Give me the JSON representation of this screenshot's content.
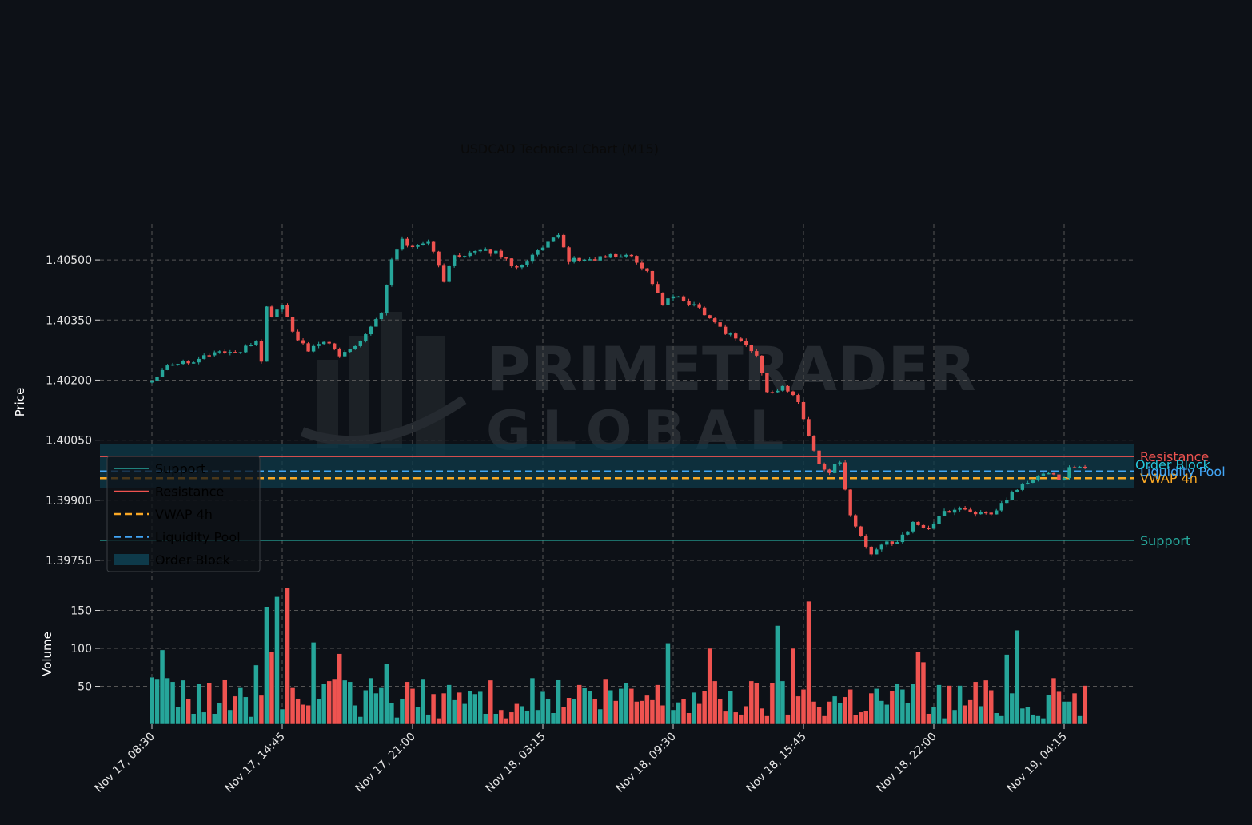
{
  "chart_data": {
    "type": "candlestick",
    "title": "USDCAD Technical Chart (M15)",
    "watermark": {
      "line1": "PRIMETRADER",
      "line2": "GLOBAL"
    },
    "price_axis": {
      "label": "Price",
      "ticks": [
        "1.40500",
        "1.40350",
        "1.40200",
        "1.40050",
        "1.39900",
        "1.39750"
      ],
      "tick_values": [
        1.405,
        1.4035,
        1.402,
        1.4005,
        1.399,
        1.3975
      ],
      "ylim": [
        1.397,
        1.4059
      ]
    },
    "volume_axis": {
      "label": "Volume",
      "ticks": [
        "50",
        "100",
        "150"
      ],
      "tick_values": [
        50,
        100,
        150
      ],
      "ylim": [
        0,
        180
      ]
    },
    "x_axis": {
      "ticks": [
        "Nov 17, 08:30",
        "Nov 17, 14:45",
        "Nov 17, 21:00",
        "Nov 18, 03:15",
        "Nov 18, 09:30",
        "Nov 18, 15:45",
        "Nov 18, 22:00",
        "Nov 19, 04:15"
      ],
      "tick_index": [
        0,
        25,
        50,
        75,
        100,
        125,
        150,
        175
      ],
      "bar_count": 180
    },
    "levels": [
      {
        "name": "Support",
        "value": 1.398,
        "color": "#26a69a",
        "style": "solid"
      },
      {
        "name": "Resistance",
        "value": 1.40009,
        "color": "#ef5350",
        "style": "solid"
      },
      {
        "name": "VWAP 4h",
        "value": 1.39955,
        "color": "#f9a825",
        "style": "dashed"
      },
      {
        "name": "Liquidity Pool",
        "value": 1.39972,
        "color": "#42a5f5",
        "style": "dashed"
      }
    ],
    "order_block": {
      "name": "Order Block",
      "low": 1.3993,
      "high": 1.4004,
      "color": "#0e3a4a",
      "label_color": "#26c6da"
    },
    "legend": {
      "placement": "lower-left",
      "entries": [
        "Support",
        "Resistance",
        "VWAP 4h",
        "Liquidity Pool",
        "Order Block"
      ]
    },
    "colors": {
      "up": "#26a69a",
      "down": "#ef5350",
      "background": "#0d1117",
      "grid": "#555555"
    },
    "close_anchors": [
      [
        0,
        1.402
      ],
      [
        3,
        1.4024
      ],
      [
        8,
        1.4025
      ],
      [
        12,
        1.4027
      ],
      [
        17,
        1.4027
      ],
      [
        20,
        1.403
      ],
      [
        21,
        1.4025
      ],
      [
        22,
        1.4038
      ],
      [
        23,
        1.4036
      ],
      [
        25,
        1.4039
      ],
      [
        27,
        1.4032
      ],
      [
        30,
        1.4027
      ],
      [
        33,
        1.403
      ],
      [
        36,
        1.4026
      ],
      [
        40,
        1.403
      ],
      [
        44,
        1.4037
      ],
      [
        46,
        1.405
      ],
      [
        48,
        1.4055
      ],
      [
        50,
        1.4053
      ],
      [
        53,
        1.4055
      ],
      [
        56,
        1.4045
      ],
      [
        58,
        1.4051
      ],
      [
        62,
        1.4052
      ],
      [
        66,
        1.4052
      ],
      [
        70,
        1.4048
      ],
      [
        74,
        1.4052
      ],
      [
        78,
        1.4056
      ],
      [
        80,
        1.405
      ],
      [
        84,
        1.405
      ],
      [
        88,
        1.4051
      ],
      [
        92,
        1.4051
      ],
      [
        95,
        1.4047
      ],
      [
        98,
        1.4039
      ],
      [
        100,
        1.4041
      ],
      [
        105,
        1.4038
      ],
      [
        110,
        1.4032
      ],
      [
        113,
        1.403
      ],
      [
        116,
        1.4026
      ],
      [
        118,
        1.4017
      ],
      [
        121,
        1.4018
      ],
      [
        124,
        1.4015
      ],
      [
        126,
        1.4006
      ],
      [
        128,
        1.3999
      ],
      [
        130,
        1.3997
      ],
      [
        132,
        1.4
      ],
      [
        134,
        1.3986
      ],
      [
        136,
        1.3981
      ],
      [
        138,
        1.3976
      ],
      [
        140,
        1.3979
      ],
      [
        143,
        1.398
      ],
      [
        146,
        1.3984
      ],
      [
        149,
        1.3983
      ],
      [
        152,
        1.3987
      ],
      [
        155,
        1.3988
      ],
      [
        158,
        1.3987
      ],
      [
        161,
        1.3986
      ],
      [
        163,
        1.3989
      ],
      [
        166,
        1.3993
      ],
      [
        169,
        1.3995
      ],
      [
        172,
        1.3997
      ],
      [
        175,
        1.3995
      ],
      [
        176,
        1.3998
      ],
      [
        178,
        1.3998
      ],
      [
        179,
        1.3998
      ]
    ],
    "volume_peaks": [
      {
        "index": 2,
        "value": 98
      },
      {
        "index": 20,
        "value": 78
      },
      {
        "index": 21,
        "value": 38
      },
      {
        "index": 22,
        "value": 155
      },
      {
        "index": 23,
        "value": 95
      },
      {
        "index": 24,
        "value": 168
      },
      {
        "index": 25,
        "value": 20
      },
      {
        "index": 26,
        "value": 180
      },
      {
        "index": 31,
        "value": 108
      },
      {
        "index": 36,
        "value": 93
      },
      {
        "index": 45,
        "value": 80
      },
      {
        "index": 99,
        "value": 107
      },
      {
        "index": 107,
        "value": 100
      },
      {
        "index": 120,
        "value": 130
      },
      {
        "index": 123,
        "value": 100
      },
      {
        "index": 126,
        "value": 162
      },
      {
        "index": 147,
        "value": 95
      },
      {
        "index": 148,
        "value": 82
      },
      {
        "index": 164,
        "value": 92
      },
      {
        "index": 166,
        "value": 124
      }
    ]
  }
}
